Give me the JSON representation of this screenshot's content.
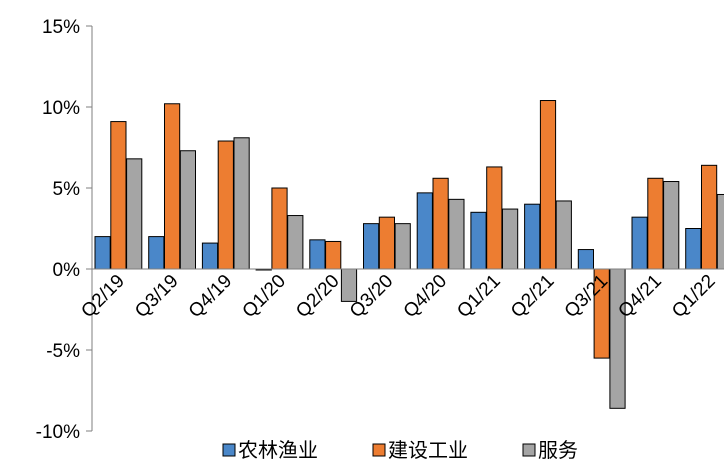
{
  "chart_data": {
    "type": "bar",
    "title": "",
    "xlabel": "",
    "ylabel": "",
    "ylim": [
      -10,
      15
    ],
    "y_ticks": [
      {
        "value": -10,
        "label": "-10%"
      },
      {
        "value": -5,
        "label": "-5%"
      },
      {
        "value": 0,
        "label": "0%"
      },
      {
        "value": 5,
        "label": "5%"
      },
      {
        "value": 10,
        "label": "10%"
      },
      {
        "value": 15,
        "label": "15%"
      }
    ],
    "categories": [
      "Q2/19",
      "Q3/19",
      "Q4/19",
      "Q1/20",
      "Q2/20",
      "Q3/20",
      "Q4/20",
      "Q1/21",
      "Q2/21",
      "Q3/21",
      "Q4/21",
      "Q1/22"
    ],
    "series": [
      {
        "name": "农林渔业",
        "color": "#4a87c9",
        "values": [
          2.0,
          2.0,
          1.6,
          0.0,
          1.8,
          2.8,
          4.7,
          3.5,
          4.0,
          1.2,
          3.2,
          2.5
        ]
      },
      {
        "name": "建设工业",
        "color": "#ed7d31",
        "values": [
          9.1,
          10.2,
          7.9,
          5.0,
          1.7,
          3.2,
          5.6,
          6.3,
          10.4,
          -5.5,
          5.6,
          6.4
        ]
      },
      {
        "name": "服务",
        "color": "#a5a5a5",
        "values": [
          6.8,
          7.3,
          8.1,
          3.3,
          -2.0,
          2.8,
          4.3,
          3.7,
          4.2,
          -8.6,
          5.4,
          4.6
        ]
      }
    ],
    "grid": false,
    "legend_position": "bottom"
  }
}
